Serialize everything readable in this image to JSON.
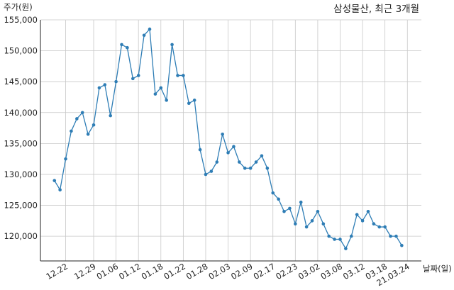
{
  "chart_data": {
    "type": "line",
    "title": "삼성물산, 최근 3개월",
    "xlabel": "날짜(일)",
    "ylabel": "주가(원)",
    "x_tick_labels": [
      "12.22",
      "12.29",
      "01.06",
      "01.12",
      "01.18",
      "01.22",
      "01.28",
      "02.03",
      "02.09",
      "02.17",
      "02.23",
      "03.02",
      "03.08",
      "03.12",
      "03.18",
      "21.03.24"
    ],
    "x_tick_positions": [
      2,
      7,
      11,
      15,
      19,
      23,
      27,
      31,
      35,
      39,
      43,
      47,
      51,
      55,
      59,
      63
    ],
    "y_tick_labels": [
      "120,000",
      "125,000",
      "130,000",
      "135,000",
      "140,000",
      "145,000",
      "150,000",
      "155,000"
    ],
    "y_ticks": [
      120000,
      125000,
      130000,
      135000,
      140000,
      145000,
      150000,
      155000
    ],
    "ylim": [
      116000,
      155000
    ],
    "xlim": [
      -2.5,
      65.5
    ],
    "grid": true,
    "line_color": "#2e7db5",
    "series": [
      {
        "values": [
          129000,
          127500,
          132500,
          137000,
          139000,
          140000,
          136500,
          138000,
          144000,
          144500,
          139500,
          145000,
          151000,
          150500,
          145500,
          146000,
          152500,
          153500,
          143000,
          144000,
          142000,
          151000,
          146000,
          146000,
          141500,
          142000,
          134000,
          130000,
          130500,
          132000,
          136500,
          133500,
          134500,
          132000,
          131000,
          131000,
          132000,
          133000,
          131000,
          127000,
          126000,
          124000,
          124500,
          122000,
          125500,
          121500,
          122500,
          124000,
          122000,
          120000,
          119500,
          119500,
          118000,
          120000,
          123500,
          122500,
          124000,
          122000,
          121500,
          121500,
          120000,
          120000,
          118500
        ]
      }
    ]
  }
}
